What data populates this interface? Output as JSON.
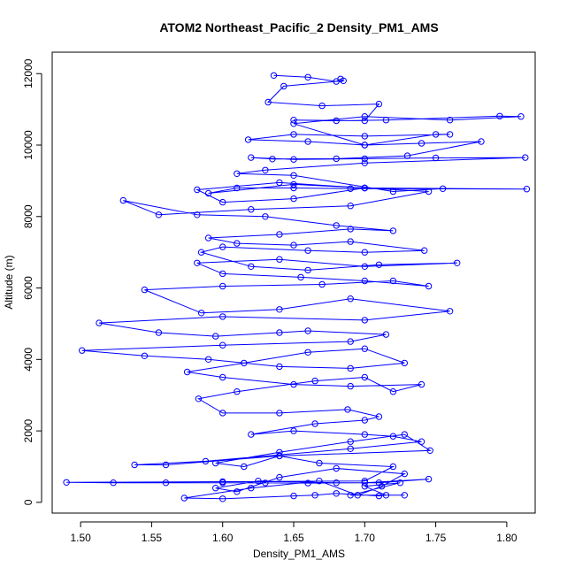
{
  "chart_data": {
    "type": "line",
    "title": "ATOM2 Northeast_Pacific_2 Density_PM1_AMS",
    "xlabel": "Density_PM1_AMS",
    "ylabel": "Altitude (m)",
    "xlim": [
      1.48,
      1.82
    ],
    "ylim": [
      -300,
      12600
    ],
    "xticks": [
      1.5,
      1.55,
      1.6,
      1.65,
      1.7,
      1.75,
      1.8
    ],
    "xtick_labels": [
      "1.50",
      "1.55",
      "1.60",
      "1.65",
      "1.70",
      "1.75",
      "1.80"
    ],
    "yticks": [
      0,
      2000,
      4000,
      6000,
      8000,
      10000,
      12000
    ],
    "ytick_labels": [
      "0",
      "2000",
      "4000",
      "6000",
      "8000",
      "10000",
      "12000"
    ],
    "grid": false,
    "line_color": "#0000ff",
    "marker": "open-circle",
    "series": [
      {
        "x": [
          1.728,
          1.69,
          1.725,
          1.7,
          1.715,
          1.71,
          1.68,
          1.665,
          1.65,
          1.6,
          1.573,
          1.62,
          1.668,
          1.695,
          1.712,
          1.728,
          1.68,
          1.64,
          1.61,
          1.595,
          1.625,
          1.68,
          1.71,
          1.745,
          1.7,
          1.66,
          1.63,
          1.6,
          1.56,
          1.523,
          1.49,
          1.6,
          1.7,
          1.72,
          1.668,
          1.64,
          1.615,
          1.595,
          1.64,
          1.69,
          1.728,
          1.746,
          1.64,
          1.56,
          1.538,
          1.588,
          1.69,
          1.74,
          1.72,
          1.7,
          1.65,
          1.62,
          1.665,
          1.7,
          1.71,
          1.688,
          1.64,
          1.6,
          1.583,
          1.61,
          1.665,
          1.7,
          1.72,
          1.74,
          1.69,
          1.65,
          1.6,
          1.575,
          1.615,
          1.66,
          1.7,
          1.728,
          1.69,
          1.64,
          1.59,
          1.545,
          1.501,
          1.6,
          1.69,
          1.715,
          1.66,
          1.64,
          1.595,
          1.555,
          1.513,
          1.6,
          1.7,
          1.76,
          1.69,
          1.64,
          1.585,
          1.545,
          1.6,
          1.67,
          1.72,
          1.745,
          1.7,
          1.655,
          1.6,
          1.582,
          1.64,
          1.7,
          1.765,
          1.71,
          1.66,
          1.62,
          1.585,
          1.6,
          1.66,
          1.7,
          1.742,
          1.69,
          1.65,
          1.61,
          1.59,
          1.64,
          1.69,
          1.72,
          1.68,
          1.63,
          1.582,
          1.53,
          1.555,
          1.62,
          1.69,
          1.745,
          1.7,
          1.65,
          1.6,
          1.582,
          1.64,
          1.7,
          1.814,
          1.69,
          1.65,
          1.61,
          1.59,
          1.65,
          1.7,
          1.755,
          1.72,
          1.65,
          1.61,
          1.63,
          1.7,
          1.813,
          1.75,
          1.7,
          1.65,
          1.62,
          1.635,
          1.68,
          1.73,
          1.782,
          1.74,
          1.7,
          1.66,
          1.618,
          1.65,
          1.7,
          1.76,
          1.75,
          1.7,
          1.65,
          1.7,
          1.76,
          1.81,
          1.795,
          1.715,
          1.68,
          1.65,
          1.7,
          1.71,
          1.67,
          1.632,
          1.643,
          1.685,
          1.683,
          1.68,
          1.66,
          1.636
        ],
        "y": [
          200,
          200,
          550,
          450,
          200,
          180,
          250,
          200,
          180,
          100,
          120,
          400,
          600,
          200,
          450,
          800,
          950,
          700,
          300,
          400,
          600,
          550,
          550,
          650,
          550,
          540,
          545,
          550,
          550,
          550,
          560,
          580,
          600,
          1000,
          1100,
          1300,
          1000,
          1100,
          1400,
          1700,
          1900,
          1450,
          1300,
          1050,
          1050,
          1150,
          1500,
          1700,
          1850,
          1900,
          2000,
          1900,
          2200,
          2300,
          2400,
          2600,
          2500,
          2500,
          2900,
          3100,
          3400,
          3500,
          3100,
          3300,
          3250,
          3300,
          3500,
          3650,
          3900,
          4200,
          4300,
          3900,
          3750,
          3800,
          4000,
          4100,
          4250,
          4400,
          4500,
          4700,
          4800,
          4750,
          4650,
          4750,
          5020,
          5200,
          5100,
          5350,
          5700,
          5400,
          5300,
          5950,
          6050,
          6100,
          6200,
          6050,
          6200,
          6300,
          6400,
          6700,
          6800,
          6600,
          6700,
          6650,
          6500,
          6600,
          7000,
          7150,
          7050,
          7000,
          7050,
          7300,
          7200,
          7250,
          7400,
          7500,
          7650,
          7600,
          7750,
          8000,
          8050,
          8450,
          8050,
          8200,
          8300,
          8700,
          8800,
          8500,
          8400,
          8750,
          8950,
          8800,
          8770,
          8780,
          8800,
          8800,
          8650,
          8900,
          8800,
          8780,
          8700,
          9150,
          9200,
          9300,
          9500,
          9650,
          9640,
          9620,
          9600,
          9650,
          9610,
          9620,
          9700,
          10100,
          10050,
          10000,
          10100,
          10150,
          10300,
          10250,
          10300,
          10300,
          10000,
          10600,
          10800,
          10700,
          10800,
          10810,
          10700,
          10680,
          10700,
          10680,
          11150,
          11100,
          11200,
          11650,
          11800,
          11850,
          11780,
          11900,
          11950
        ]
      }
    ]
  }
}
